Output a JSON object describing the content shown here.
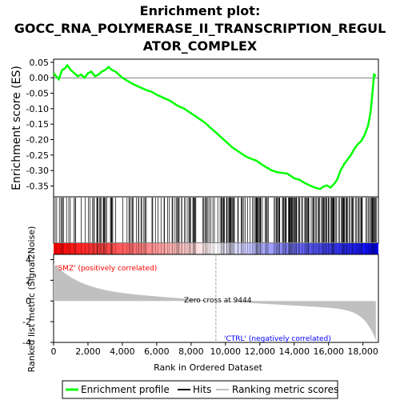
{
  "chart_data": {
    "type": "line",
    "title_lines": [
      "Enrichment plot:",
      "GOCC_RNA_POLYMERASE_II_TRANSCRIPTION_REGUL",
      "ATOR_COMPLEX"
    ],
    "ylabel": "Enrichment score (ES)",
    "ylabel_bottom": "Ranked list metric (Signal2Noise)",
    "xlabel": "Rank in Ordered Dataset",
    "x_ticks": [
      "0",
      "2,000",
      "4,000",
      "6,000",
      "8,000",
      "10,000",
      "12,000",
      "14,000",
      "16,000",
      "18,000"
    ],
    "x_tick_values": [
      0,
      2000,
      4000,
      6000,
      8000,
      10000,
      12000,
      14000,
      16000,
      18000
    ],
    "y_ticks": [
      "0.05",
      "0.00",
      "-0.05",
      "-0.10",
      "-0.15",
      "-0.20",
      "-0.25",
      "-0.30",
      "-0.35"
    ],
    "y_tick_values": [
      0.05,
      0.0,
      -0.05,
      -0.1,
      -0.15,
      -0.2,
      -0.25,
      -0.3,
      -0.35
    ],
    "y_ticks_bottom": [
      "4",
      "2",
      "0",
      "-2",
      "-4"
    ],
    "y_tick_values_bottom": [
      4,
      2,
      0,
      -2,
      -4
    ],
    "xlim": [
      0,
      18900
    ],
    "ylim": [
      -0.385,
      0.06
    ],
    "ylim_bottom": [
      -4,
      4.5
    ],
    "series": [
      {
        "name": "Enrichment profile",
        "color": "#00ff00",
        "x": [
          0,
          150,
          300,
          400,
          500,
          650,
          800,
          1000,
          1200,
          1400,
          1600,
          1800,
          2000,
          2200,
          2400,
          2600,
          2800,
          3000,
          3200,
          3400,
          3600,
          3800,
          4000,
          4300,
          4600,
          5000,
          5400,
          5700,
          6000,
          6400,
          6800,
          7200,
          7600,
          8000,
          8400,
          8800,
          9200,
          9600,
          10000,
          10400,
          10800,
          11200,
          11500,
          11800,
          12100,
          12400,
          12700,
          13000,
          13300,
          13600,
          14000,
          14300,
          14600,
          14900,
          15200,
          15500,
          15700,
          15900,
          16100,
          16300,
          16500,
          16700,
          16900,
          17100,
          17300,
          17500,
          17700,
          17900,
          18100,
          18300,
          18450,
          18550,
          18650,
          18750
        ],
        "y": [
          0.015,
          0.005,
          -0.005,
          0.01,
          0.025,
          0.03,
          0.04,
          0.025,
          0.015,
          0.005,
          0.01,
          0.0,
          0.015,
          0.02,
          0.005,
          0.01,
          0.02,
          0.025,
          0.035,
          0.025,
          0.02,
          0.01,
          0.0,
          -0.01,
          -0.02,
          -0.03,
          -0.04,
          -0.045,
          -0.055,
          -0.065,
          -0.075,
          -0.09,
          -0.1,
          -0.115,
          -0.13,
          -0.145,
          -0.165,
          -0.185,
          -0.205,
          -0.225,
          -0.24,
          -0.255,
          -0.262,
          -0.268,
          -0.28,
          -0.29,
          -0.3,
          -0.305,
          -0.308,
          -0.31,
          -0.325,
          -0.33,
          -0.34,
          -0.348,
          -0.355,
          -0.36,
          -0.352,
          -0.348,
          -0.355,
          -0.345,
          -0.33,
          -0.3,
          -0.28,
          -0.265,
          -0.25,
          -0.23,
          -0.215,
          -0.205,
          -0.185,
          -0.155,
          -0.11,
          -0.05,
          0.01,
          0.005
        ]
      },
      {
        "name": "Hits",
        "color": "#000000"
      },
      {
        "name": "Ranking metric scores",
        "color": "#c0c0c0"
      }
    ],
    "zero_cross": 9444,
    "annotations": {
      "zero_cross": "Zero cross at 9444",
      "pos_label": "'SMZ' (positively correlated)",
      "neg_label": "'CTRL' (negatively correlated)"
    },
    "colors": {
      "profile": "#00ff00",
      "hits": "#000000",
      "metric_fill": "#c0c0c0",
      "pos_label": "#ff0000",
      "neg_label": "#0000ff",
      "heat_pos": "#ff0000",
      "heat_neg": "#0000ff"
    },
    "legend_position": "bottom",
    "grid": false
  }
}
